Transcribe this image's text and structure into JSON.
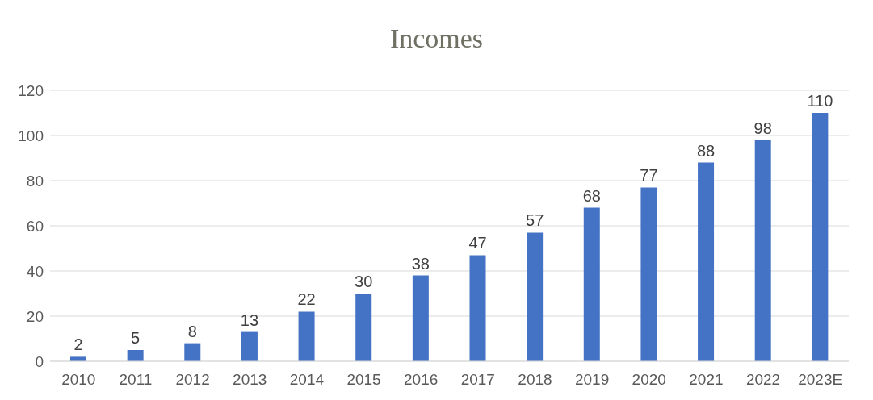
{
  "chart_data": {
    "type": "bar",
    "title": "Incomes",
    "categories": [
      "2010",
      "2011",
      "2012",
      "2013",
      "2014",
      "2015",
      "2016",
      "2017",
      "2018",
      "2019",
      "2020",
      "2021",
      "2022",
      "2023E"
    ],
    "values": [
      2,
      5,
      8,
      13,
      22,
      30,
      38,
      47,
      57,
      68,
      77,
      88,
      98,
      110
    ],
    "color": "#4472c4",
    "ylim": [
      0,
      120
    ],
    "yticks": [
      0,
      20,
      40,
      60,
      80,
      100,
      120
    ],
    "grid": "y",
    "data_labels": true,
    "legend": false
  }
}
